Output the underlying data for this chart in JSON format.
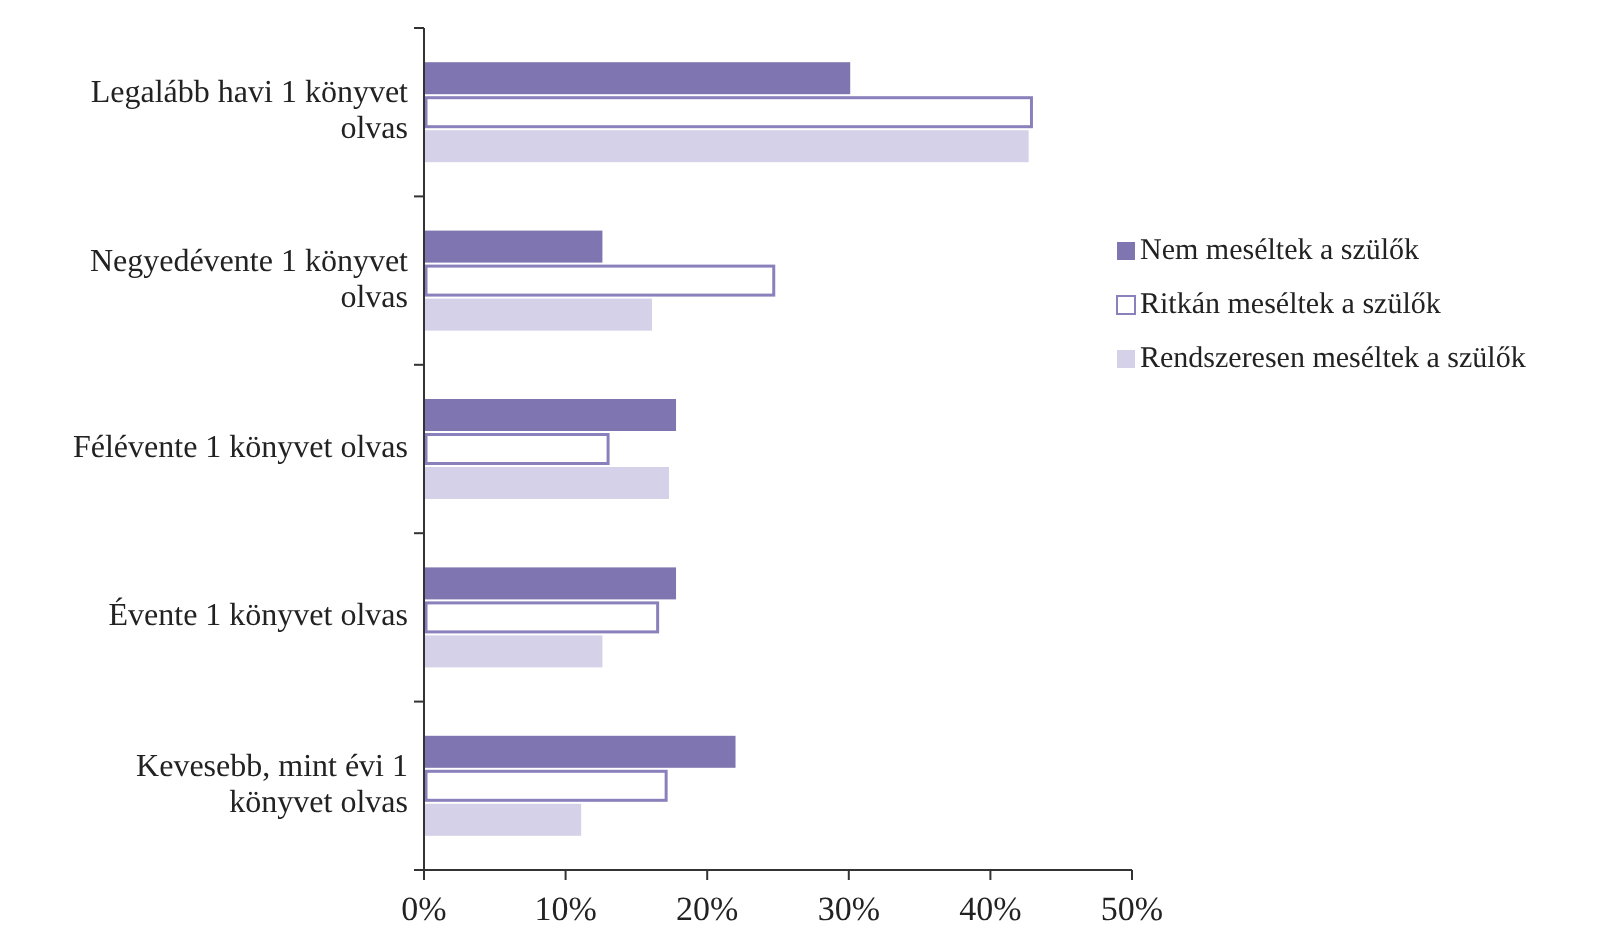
{
  "chart_data": {
    "type": "bar",
    "orientation": "horizontal",
    "categories": [
      "Legalább havi 1 könyvet olvas",
      "Negyedévente 1 könyvet olvas",
      "Félévente 1 könyvet olvas",
      "Évente 1 könyvet olvas",
      "Kevesebb, mint évi 1 könyvet olvas"
    ],
    "series": [
      {
        "name": "Nem meséltek a szülők",
        "color": "#7f75b0",
        "values": [
          30.1,
          12.6,
          17.8,
          17.8,
          22.0
        ]
      },
      {
        "name": "Ritkán meséltek a szülők",
        "color": "#ffffff",
        "values": [
          42.9,
          24.7,
          13.0,
          16.5,
          17.1
        ]
      },
      {
        "name": "Rendszeresen meséltek a szülők",
        "color": "#d5d1e8",
        "values": [
          42.7,
          16.1,
          17.3,
          12.6,
          11.1
        ]
      }
    ],
    "xlim": [
      0,
      50
    ],
    "xticks": [
      {
        "value": 0,
        "label": "0%"
      },
      {
        "value": 10,
        "label": "10%"
      },
      {
        "value": 20,
        "label": "20%"
      },
      {
        "value": 30,
        "label": "30%"
      },
      {
        "value": 40,
        "label": "40%"
      },
      {
        "value": 50,
        "label": "50%"
      }
    ],
    "legend": "right",
    "grid": false
  }
}
